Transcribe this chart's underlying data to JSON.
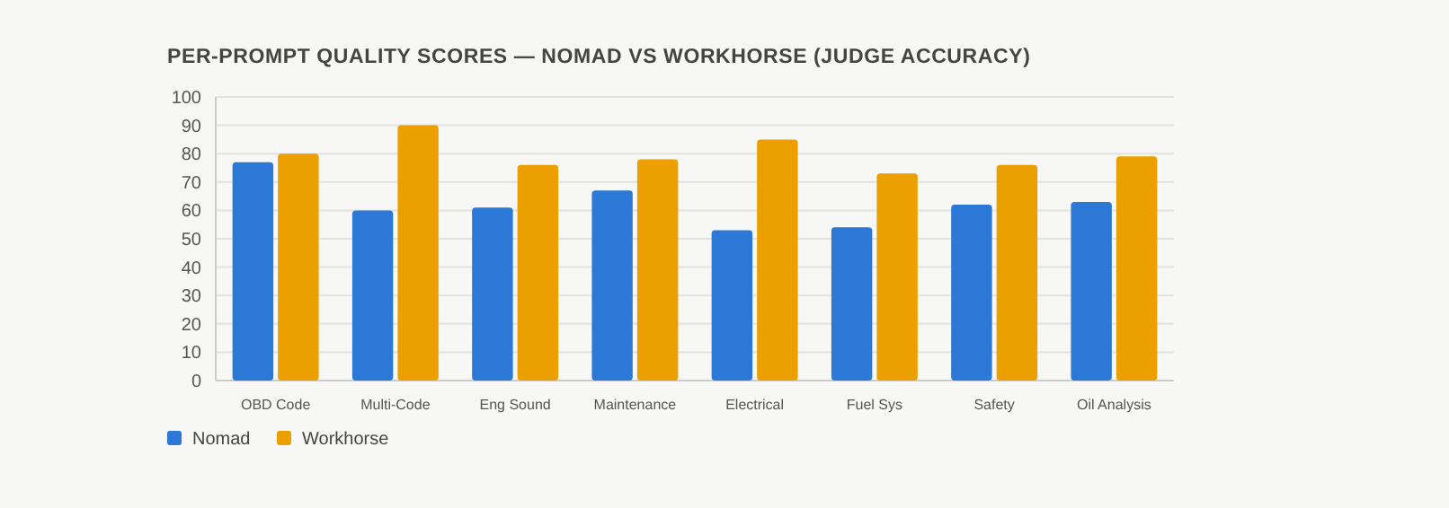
{
  "chart_data": {
    "type": "bar",
    "title": "PER-PROMPT QUALITY SCORES — NOMAD VS WORKHORSE (JUDGE ACCURACY)",
    "categories": [
      "OBD Code",
      "Multi-Code",
      "Eng Sound",
      "Maintenance",
      "Electrical",
      "Fuel Sys",
      "Safety",
      "Oil Analysis"
    ],
    "series": [
      {
        "name": "Nomad",
        "color": "#2b78d6",
        "values": [
          77,
          60,
          61,
          67,
          53,
          54,
          62,
          63
        ]
      },
      {
        "name": "Workhorse",
        "color": "#eba000",
        "values": [
          80,
          90,
          76,
          78,
          85,
          73,
          76,
          79
        ]
      }
    ],
    "ylim": [
      0,
      100
    ],
    "yticks": [
      0,
      10,
      20,
      30,
      40,
      50,
      60,
      70,
      80,
      90,
      100
    ],
    "grid": "y",
    "legend": "bottom left"
  }
}
